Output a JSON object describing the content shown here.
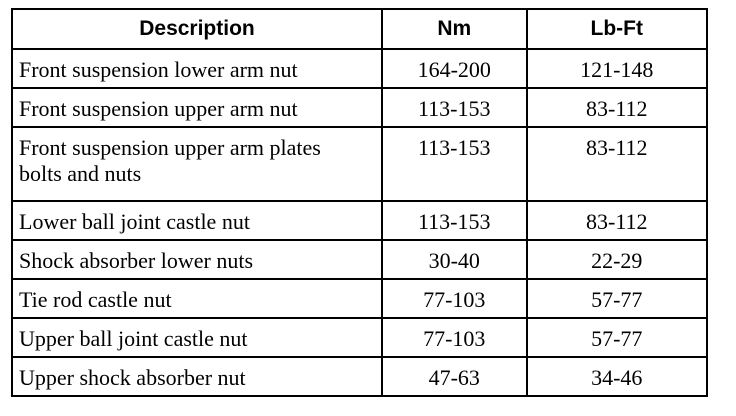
{
  "table": {
    "headers": [
      "Description",
      "Nm",
      "Lb-Ft"
    ],
    "rows": [
      [
        "Front suspension lower arm nut",
        "164-200",
        "121-148"
      ],
      [
        "Front suspension upper arm nut",
        "113-153",
        "83-112"
      ],
      [
        "Front suspension upper arm plates bolts and nuts",
        "113-153",
        "83-112"
      ],
      [
        "Lower ball joint castle nut",
        "113-153",
        "83-112"
      ],
      [
        "Shock absorber lower nuts",
        "30-40",
        "22-29"
      ],
      [
        "Tie rod castle nut",
        "77-103",
        "57-77"
      ],
      [
        "Upper ball joint castle nut",
        "77-103",
        "57-77"
      ],
      [
        "Upper shock absorber nut",
        "47-63",
        "34-46"
      ]
    ]
  }
}
